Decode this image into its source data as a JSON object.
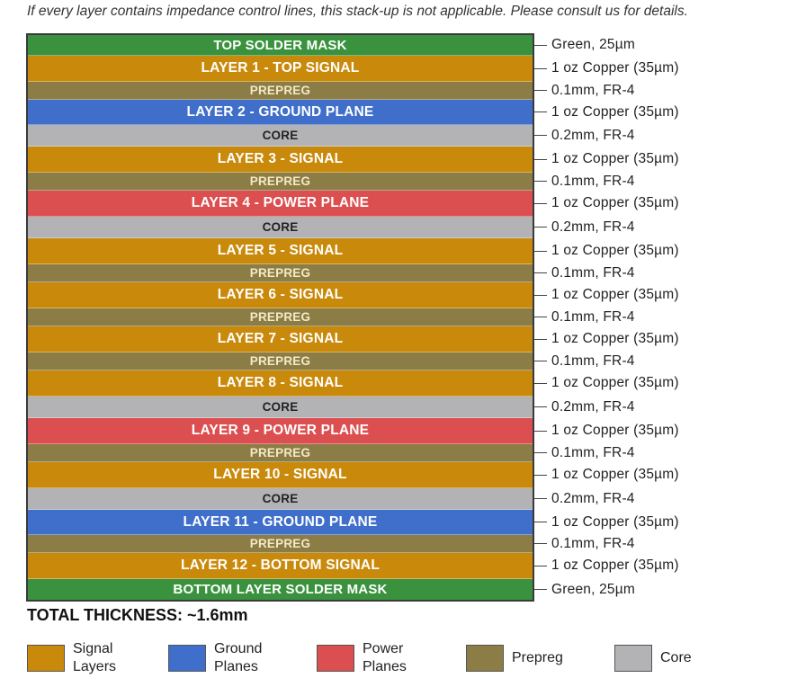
{
  "note": "If every layer contains impedance control lines, this stack-up is not applicable. Please consult us for details.",
  "colors": {
    "mask": "#3a923e",
    "signal": "#c98a0c",
    "prepreg": "#8c7d47",
    "ground": "#3f6fca",
    "core": "#b3b3b5",
    "power": "#dc4f50"
  },
  "layers": [
    {
      "label": "TOP SOLDER MASK",
      "type": "mask",
      "desc": "Green, 25µm"
    },
    {
      "label": "LAYER 1 - TOP SIGNAL",
      "type": "signal",
      "desc": "1 oz Copper (35µm)"
    },
    {
      "label": "PREPREG",
      "type": "prepreg",
      "desc": "0.1mm, FR-4"
    },
    {
      "label": "LAYER 2 - GROUND PLANE",
      "type": "ground",
      "desc": "1 oz Copper (35µm)"
    },
    {
      "label": "CORE",
      "type": "core",
      "desc": "0.2mm, FR-4"
    },
    {
      "label": "LAYER 3 - SIGNAL",
      "type": "signal",
      "desc": "1 oz Copper (35µm)"
    },
    {
      "label": "PREPREG",
      "type": "prepreg",
      "desc": "0.1mm, FR-4"
    },
    {
      "label": "LAYER 4 - POWER PLANE",
      "type": "power",
      "desc": "1 oz Copper (35µm)"
    },
    {
      "label": "CORE",
      "type": "core",
      "desc": "0.2mm, FR-4"
    },
    {
      "label": "LAYER 5 - SIGNAL",
      "type": "signal",
      "desc": "1 oz Copper (35µm)"
    },
    {
      "label": "PREPREG",
      "type": "prepreg",
      "desc": "0.1mm, FR-4"
    },
    {
      "label": "LAYER 6 - SIGNAL",
      "type": "signal",
      "desc": "1 oz Copper (35µm)"
    },
    {
      "label": "PREPREG",
      "type": "prepreg",
      "desc": "0.1mm, FR-4"
    },
    {
      "label": "LAYER 7 - SIGNAL",
      "type": "signal",
      "desc": "1 oz Copper (35µm)"
    },
    {
      "label": "PREPREG",
      "type": "prepreg",
      "desc": "0.1mm, FR-4"
    },
    {
      "label": "LAYER 8 - SIGNAL",
      "type": "signal",
      "desc": "1 oz Copper (35µm)"
    },
    {
      "label": "CORE",
      "type": "core",
      "desc": "0.2mm, FR-4"
    },
    {
      "label": "LAYER 9 - POWER PLANE",
      "type": "power",
      "desc": "1 oz Copper (35µm)"
    },
    {
      "label": "PREPREG",
      "type": "prepreg",
      "desc": "0.1mm, FR-4"
    },
    {
      "label": "LAYER 10 - SIGNAL",
      "type": "signal",
      "desc": "1 oz Copper (35µm)"
    },
    {
      "label": "CORE",
      "type": "core",
      "desc": "0.2mm, FR-4"
    },
    {
      "label": "LAYER 11 - GROUND PLANE",
      "type": "ground",
      "desc": "1 oz Copper (35µm)"
    },
    {
      "label": "PREPREG",
      "type": "prepreg",
      "desc": "0.1mm, FR-4"
    },
    {
      "label": "LAYER 12 - BOTTOM SIGNAL",
      "type": "signal",
      "desc": "1 oz Copper (35µm)"
    },
    {
      "label": "BOTTOM LAYER SOLDER MASK",
      "type": "mask",
      "desc": "Green, 25µm"
    }
  ],
  "total": "TOTAL THICKNESS: ~1.6mm",
  "legend": [
    {
      "label": "Signal Layers",
      "type": "signal"
    },
    {
      "label": "Ground Planes",
      "type": "ground"
    },
    {
      "label": "Power Planes",
      "type": "power"
    },
    {
      "label": "Prepreg",
      "type": "prepreg"
    },
    {
      "label": "Core",
      "type": "core"
    }
  ]
}
